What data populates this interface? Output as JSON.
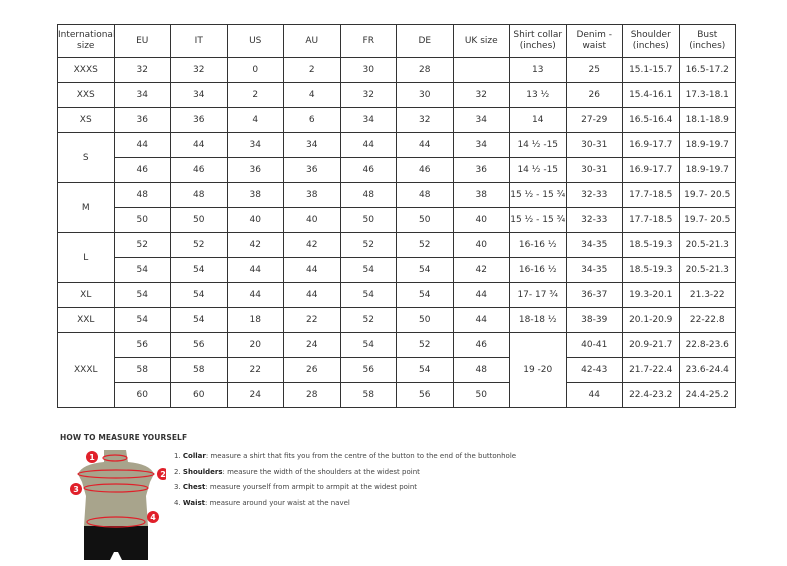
{
  "table": {
    "headers": [
      "International size",
      "EU",
      "IT",
      "US",
      "AU",
      "FR",
      "DE",
      "UK size",
      "Shirt collar (inches)",
      "Denim - waist",
      "Shoulder (inches)",
      "Bust (inches)"
    ],
    "groups": [
      {
        "size": "XXXS",
        "rows": [
          [
            "32",
            "32",
            "0",
            "2",
            "30",
            "28",
            "",
            "13",
            "25",
            "15.1-15.7",
            "16.5-17.2"
          ]
        ]
      },
      {
        "size": "XXS",
        "rows": [
          [
            "34",
            "34",
            "2",
            "4",
            "32",
            "30",
            "32",
            "13 ½",
            "26",
            "15.4-16.1",
            "17.3-18.1"
          ]
        ]
      },
      {
        "size": "XS",
        "rows": [
          [
            "36",
            "36",
            "4",
            "6",
            "34",
            "32",
            "34",
            "14",
            "27-29",
            "16.5-16.4",
            "18.1-18.9"
          ]
        ]
      },
      {
        "size": "S",
        "rows": [
          [
            "44",
            "44",
            "34",
            "34",
            "44",
            "44",
            "34",
            "14 ½ -15",
            "30-31",
            "16.9-17.7",
            "18.9-19.7"
          ],
          [
            "46",
            "46",
            "36",
            "36",
            "46",
            "46",
            "36",
            "14 ½ -15",
            "30-31",
            "16.9-17.7",
            "18.9-19.7"
          ]
        ]
      },
      {
        "size": "M",
        "rows": [
          [
            "48",
            "48",
            "38",
            "38",
            "48",
            "48",
            "38",
            "15 ½ - 15 ¾",
            "32-33",
            "17.7-18.5",
            "19.7- 20.5"
          ],
          [
            "50",
            "50",
            "40",
            "40",
            "50",
            "50",
            "40",
            "15 ½ - 15 ¾",
            "32-33",
            "17.7-18.5",
            "19.7- 20.5"
          ]
        ]
      },
      {
        "size": "L",
        "rows": [
          [
            "52",
            "52",
            "42",
            "42",
            "52",
            "52",
            "40",
            "16-16 ½",
            "34-35",
            "18.5-19.3",
            "20.5-21.3"
          ],
          [
            "54",
            "54",
            "44",
            "44",
            "54",
            "54",
            "42",
            "16-16 ½",
            "34-35",
            "18.5-19.3",
            "20.5-21.3"
          ]
        ]
      },
      {
        "size": "XL",
        "rows": [
          [
            "54",
            "54",
            "44",
            "44",
            "54",
            "54",
            "44",
            "17- 17 ¾",
            "36-37",
            "19.3-20.1",
            "21.3-22"
          ]
        ]
      },
      {
        "size": "XXL",
        "rows": [
          [
            "54",
            "54",
            "18",
            "22",
            "52",
            "50",
            "44",
            "18-18 ½",
            "38-39",
            "20.1-20.9",
            "22-22.8"
          ]
        ]
      },
      {
        "size": "XXXL",
        "merged_collar": "19 -20",
        "rows": [
          [
            "56",
            "56",
            "20",
            "24",
            "54",
            "52",
            "46",
            null,
            "40-41",
            "20.9-21.7",
            "22.8-23.6"
          ],
          [
            "58",
            "58",
            "22",
            "26",
            "56",
            "54",
            "48",
            null,
            "42-43",
            "21.7-22.4",
            "23.6-24.4"
          ],
          [
            "60",
            "60",
            "24",
            "28",
            "58",
            "56",
            "50",
            null,
            "44",
            "22.4-23.2",
            "24.4-25.2"
          ]
        ]
      }
    ]
  },
  "howto": {
    "title": "HOW TO MEASURE YOURSELF",
    "steps": [
      {
        "num": "1.",
        "term": "Collar",
        "text": ": measure a shirt that fits you from the centre of the button to the end of the buttonhole"
      },
      {
        "num": "2.",
        "term": "Shoulders",
        "text": ": measure the width of the shoulders at the widest point"
      },
      {
        "num": "3.",
        "term": "Chest",
        "text": ": measure yourself from armpit to armpit at the widest point"
      },
      {
        "num": "4.",
        "term": "Waist",
        "text": ": measure around your waist at the navel"
      }
    ],
    "markers": [
      "1",
      "2",
      "3",
      "4"
    ]
  },
  "colors": {
    "accent": "#e0202a",
    "torso": "#a8a48c",
    "shorts": "#111111"
  }
}
